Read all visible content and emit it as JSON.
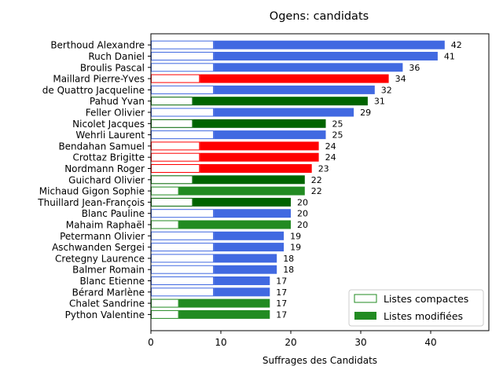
{
  "chart_data": {
    "type": "bar",
    "orientation": "horizontal",
    "stacked": true,
    "title": "Ogens: candidats",
    "xlabel": "Suffrages des Candidats",
    "xlim": [
      0,
      48
    ],
    "xticks": [
      0,
      10,
      20,
      30,
      40
    ],
    "grid": false,
    "legend_position": "lower-right",
    "legend": [
      {
        "label": "Listes compactes",
        "style": "outline",
        "color": "#228b22"
      },
      {
        "label": "Listes modifiées",
        "style": "filled",
        "color": "#228b22"
      }
    ],
    "candidates": [
      {
        "name": "Berthoud Alexandre",
        "compact": 9,
        "total": 42,
        "color": "#4169e1"
      },
      {
        "name": "Ruch Daniel",
        "compact": 9,
        "total": 41,
        "color": "#4169e1"
      },
      {
        "name": "Broulis Pascal",
        "compact": 9,
        "total": 36,
        "color": "#4169e1"
      },
      {
        "name": "Maillard Pierre-Yves",
        "compact": 7,
        "total": 34,
        "color": "#ff0000"
      },
      {
        "name": "de Quattro Jacqueline",
        "compact": 9,
        "total": 32,
        "color": "#4169e1"
      },
      {
        "name": "Pahud Yvan",
        "compact": 6,
        "total": 31,
        "color": "#006400"
      },
      {
        "name": "Feller Olivier",
        "compact": 9,
        "total": 29,
        "color": "#4169e1"
      },
      {
        "name": "Nicolet Jacques",
        "compact": 6,
        "total": 25,
        "color": "#006400"
      },
      {
        "name": "Wehrli Laurent",
        "compact": 9,
        "total": 25,
        "color": "#4169e1"
      },
      {
        "name": "Bendahan Samuel",
        "compact": 7,
        "total": 24,
        "color": "#ff0000"
      },
      {
        "name": "Crottaz Brigitte",
        "compact": 7,
        "total": 24,
        "color": "#ff0000"
      },
      {
        "name": "Nordmann Roger",
        "compact": 7,
        "total": 23,
        "color": "#ff0000"
      },
      {
        "name": "Guichard Olivier",
        "compact": 6,
        "total": 22,
        "color": "#006400"
      },
      {
        "name": "Michaud Gigon Sophie",
        "compact": 4,
        "total": 22,
        "color": "#228b22"
      },
      {
        "name": "Thuillard Jean-François",
        "compact": 6,
        "total": 20,
        "color": "#006400"
      },
      {
        "name": "Blanc Pauline",
        "compact": 9,
        "total": 20,
        "color": "#4169e1"
      },
      {
        "name": "Mahaim Raphaël",
        "compact": 4,
        "total": 20,
        "color": "#228b22"
      },
      {
        "name": "Petermann Olivier",
        "compact": 9,
        "total": 19,
        "color": "#4169e1"
      },
      {
        "name": "Aschwanden Sergei",
        "compact": 9,
        "total": 19,
        "color": "#4169e1"
      },
      {
        "name": "Cretegny Laurence",
        "compact": 9,
        "total": 18,
        "color": "#4169e1"
      },
      {
        "name": "Balmer Romain",
        "compact": 9,
        "total": 18,
        "color": "#4169e1"
      },
      {
        "name": "Blanc Etienne",
        "compact": 9,
        "total": 17,
        "color": "#4169e1"
      },
      {
        "name": "Bérard Marlène",
        "compact": 9,
        "total": 17,
        "color": "#4169e1"
      },
      {
        "name": "Chalet Sandrine",
        "compact": 4,
        "total": 17,
        "color": "#228b22"
      },
      {
        "name": "Python Valentine",
        "compact": 4,
        "total": 17,
        "color": "#228b22"
      }
    ]
  }
}
